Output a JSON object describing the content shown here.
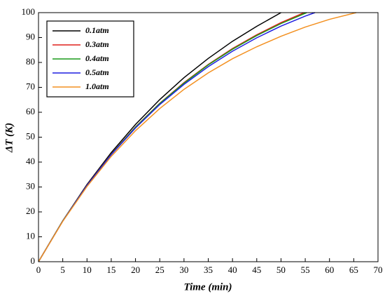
{
  "chart_data": {
    "type": "line",
    "xlabel": "Time (min)",
    "ylabel": "ΔT (K)",
    "xlim": [
      0,
      70
    ],
    "xticks": [
      0,
      5,
      10,
      15,
      20,
      25,
      30,
      35,
      40,
      45,
      50,
      55,
      60,
      65,
      70
    ],
    "ylim": [
      0,
      100
    ],
    "yticks": [
      0,
      10,
      20,
      30,
      40,
      50,
      60,
      70,
      80,
      90,
      100
    ],
    "legend": "upper left",
    "series": [
      {
        "name": "0.1atm",
        "color": "#000000",
        "x": [
          0,
          5,
          10,
          15,
          20,
          25,
          30,
          35,
          40,
          45,
          50
        ],
        "values": [
          0,
          16.4,
          31.0,
          43.8,
          55.1,
          65.1,
          73.9,
          81.6,
          88.5,
          94.5,
          100
        ]
      },
      {
        "name": "0.3atm",
        "color": "#e0201b",
        "x": [
          0,
          5,
          10,
          15,
          20,
          25,
          30,
          35,
          40,
          45,
          50,
          54.8
        ],
        "values": [
          0,
          16.4,
          30.7,
          43.2,
          54.1,
          63.6,
          71.9,
          79.2,
          85.6,
          91.1,
          96.0,
          100
        ]
      },
      {
        "name": "0.4atm",
        "color": "#1a9a1a",
        "x": [
          0,
          5,
          10,
          15,
          20,
          25,
          30,
          35,
          40,
          45,
          50,
          55.3
        ],
        "values": [
          0,
          16.4,
          30.6,
          43.1,
          54.0,
          63.5,
          71.7,
          79.0,
          85.3,
          90.8,
          95.6,
          100
        ]
      },
      {
        "name": "0.5atm",
        "color": "#1f1fe0",
        "x": [
          0,
          5,
          10,
          15,
          20,
          25,
          30,
          35,
          40,
          45,
          50,
          55,
          57
        ],
        "values": [
          0,
          16.3,
          30.6,
          43.0,
          53.7,
          63.1,
          71.2,
          78.3,
          84.5,
          89.9,
          94.6,
          98.6,
          100
        ]
      },
      {
        "name": "1.0atm",
        "color": "#f39020",
        "x": [
          0,
          5,
          10,
          15,
          20,
          25,
          30,
          35,
          40,
          45,
          50,
          55,
          60,
          65.5
        ],
        "values": [
          0,
          16.2,
          30.2,
          42.3,
          52.6,
          61.5,
          69.2,
          75.8,
          81.5,
          86.3,
          90.5,
          94.2,
          97.3,
          100
        ]
      }
    ]
  }
}
